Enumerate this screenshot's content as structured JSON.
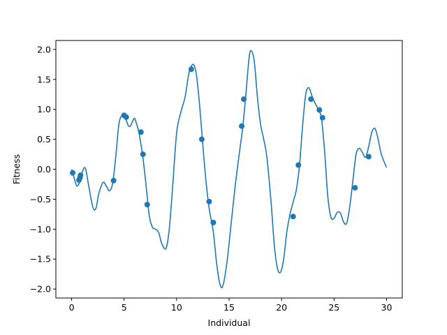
{
  "chart_data": {
    "type": "line",
    "title": "",
    "xlabel": "Individual",
    "ylabel": "Fitness",
    "xlim": [
      -1.5,
      31.5
    ],
    "ylim": [
      -2.15,
      2.15
    ],
    "xticks": [
      0,
      5,
      10,
      15,
      20,
      25,
      30
    ],
    "yticks": [
      -2.0,
      -1.5,
      -1.0,
      -0.5,
      0.0,
      0.5,
      1.0,
      1.5,
      2.0
    ],
    "xtick_labels": [
      "0",
      "5",
      "10",
      "15",
      "20",
      "25",
      "30"
    ],
    "ytick_labels": [
      "−2.0",
      "−1.5",
      "−1.0",
      "−0.5",
      "0.0",
      "0.5",
      "1.0",
      "1.5",
      "2.0"
    ],
    "grid": false,
    "legend": "none",
    "line_color": "#1f77b4",
    "series": [
      {
        "type": "line",
        "x": [
          0.0,
          0.25,
          0.5,
          0.8,
          1.0,
          1.3,
          1.6,
          2.0,
          2.3,
          2.6,
          3.0,
          3.3,
          3.6,
          3.9,
          4.2,
          4.5,
          4.8,
          5.0,
          5.2,
          5.4,
          5.6,
          5.8,
          6.0,
          6.2,
          6.4,
          6.6,
          6.8,
          7.0,
          7.2,
          7.4,
          7.7,
          8.0,
          8.3,
          8.6,
          9.0,
          9.3,
          9.6,
          10.0,
          10.4,
          10.8,
          11.2,
          11.6,
          11.9,
          12.2,
          12.5,
          12.8,
          13.1,
          13.5,
          13.8,
          14.1,
          14.4,
          14.8,
          15.2,
          15.6,
          16.0,
          16.3,
          16.6,
          16.9,
          17.1,
          17.4,
          17.7,
          18.0,
          18.3,
          18.6,
          19.0,
          19.3,
          19.6,
          19.9,
          20.2,
          20.5,
          20.8,
          21.1,
          21.4,
          21.7,
          22.0,
          22.3,
          22.6,
          22.9,
          23.2,
          23.5,
          23.8,
          24.1,
          24.4,
          24.7,
          25.0,
          25.3,
          25.6,
          25.9,
          26.2,
          26.5,
          26.8,
          27.1,
          27.4,
          27.7,
          28.0,
          28.3,
          28.6,
          28.9,
          29.2,
          29.5,
          30.0
        ],
        "y": [
          0.0,
          -0.15,
          -0.28,
          -0.2,
          -0.05,
          0.02,
          -0.25,
          -0.62,
          -0.66,
          -0.4,
          -0.22,
          -0.28,
          -0.36,
          -0.24,
          0.2,
          0.75,
          0.9,
          0.88,
          0.82,
          0.73,
          0.72,
          0.8,
          0.85,
          0.75,
          0.62,
          0.42,
          0.18,
          -0.12,
          -0.45,
          -0.78,
          -0.97,
          -1.0,
          -1.06,
          -1.25,
          -1.32,
          -1.0,
          -0.35,
          0.6,
          0.95,
          1.2,
          1.62,
          1.75,
          1.56,
          1.05,
          0.4,
          -0.2,
          -0.65,
          -1.05,
          -1.55,
          -1.9,
          -1.95,
          -1.55,
          -0.9,
          -0.25,
          0.3,
          0.7,
          1.25,
          1.85,
          1.98,
          1.8,
          1.2,
          0.75,
          0.5,
          0.2,
          -0.55,
          -1.25,
          -1.65,
          -1.72,
          -1.5,
          -1.05,
          -0.75,
          -0.55,
          -0.35,
          0.05,
          0.72,
          1.25,
          1.36,
          1.22,
          1.1,
          1.0,
          0.85,
          0.3,
          -0.45,
          -0.8,
          -0.82,
          -0.72,
          -0.73,
          -0.88,
          -0.9,
          -0.62,
          -0.18,
          0.25,
          0.35,
          0.28,
          0.2,
          0.38,
          0.62,
          0.68,
          0.5,
          0.25,
          0.03
        ]
      },
      {
        "type": "scatter",
        "x": [
          0.1,
          0.7,
          0.8,
          0.85,
          4.0,
          5.0,
          5.2,
          6.6,
          6.8,
          7.2,
          11.4,
          12.4,
          13.1,
          13.5,
          16.2,
          16.4,
          21.1,
          21.6,
          22.8,
          23.6,
          23.9,
          27.0,
          28.3
        ],
        "y": [
          -0.06,
          -0.18,
          -0.14,
          -0.1,
          -0.19,
          0.9,
          0.87,
          0.62,
          0.25,
          -0.59,
          1.67,
          0.5,
          -0.54,
          -0.89,
          0.72,
          1.17,
          -0.79,
          0.07,
          1.17,
          0.99,
          0.86,
          -0.31,
          0.21
        ]
      }
    ]
  }
}
